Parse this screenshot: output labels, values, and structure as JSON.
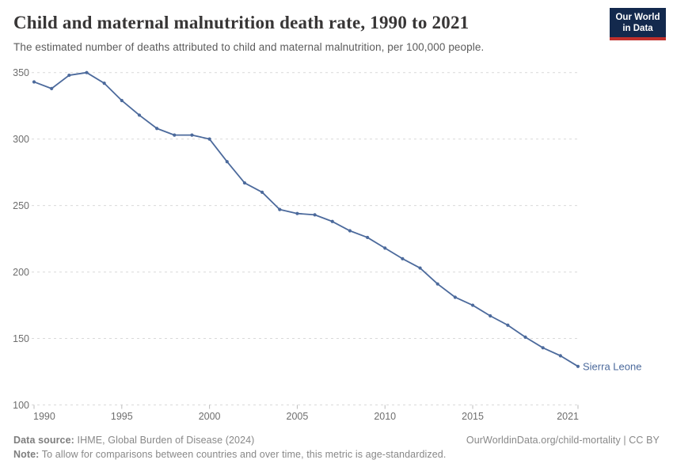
{
  "header": {
    "title": "Child and maternal malnutrition death rate, 1990 to 2021",
    "subtitle": "The estimated number of deaths attributed to child and maternal malnutrition, per 100,000 people.",
    "logo_line1": "Our World",
    "logo_line2": "in Data"
  },
  "chart_data": {
    "type": "line",
    "title": "Child and maternal malnutrition death rate, 1990 to 2021",
    "xlabel": "",
    "ylabel": "",
    "x": [
      1990,
      1991,
      1992,
      1993,
      1994,
      1995,
      1996,
      1997,
      1998,
      1999,
      2000,
      2001,
      2002,
      2003,
      2004,
      2005,
      2006,
      2007,
      2008,
      2009,
      2010,
      2011,
      2012,
      2013,
      2014,
      2015,
      2016,
      2017,
      2018,
      2019,
      2020,
      2021
    ],
    "series": [
      {
        "name": "Sierra Leone",
        "color": "#4c6a9c",
        "values": [
          343,
          338,
          348,
          350,
          342,
          329,
          318,
          308,
          303,
          303,
          300,
          283,
          267,
          260,
          247,
          244,
          243,
          238,
          231,
          226,
          218,
          210,
          203,
          191,
          181,
          175,
          167,
          160,
          151,
          143,
          137,
          129
        ]
      }
    ],
    "x_ticks": [
      1990,
      1995,
      2000,
      2005,
      2010,
      2015,
      2021
    ],
    "y_ticks": [
      100,
      150,
      200,
      250,
      300,
      350
    ],
    "xlim": [
      1990,
      2021
    ],
    "ylim": [
      100,
      350
    ],
    "grid": "horizontal-dashed",
    "legend_position": "end-of-line-label"
  },
  "colors": {
    "line": "#4c6a9c",
    "grid": "#d9d9d9",
    "tick": "#bdbdbd",
    "axis_text": "#6e6e6e",
    "logo_bg": "#13294d",
    "logo_accent": "#c0302c"
  },
  "footer": {
    "source_label": "Data source:",
    "source_text": " IHME, Global Burden of Disease (2024)",
    "citation": "OurWorldinData.org/child-mortality | CC BY",
    "note_label": "Note:",
    "note_text": " To allow for comparisons between countries and over time, this metric is age-standardized."
  }
}
